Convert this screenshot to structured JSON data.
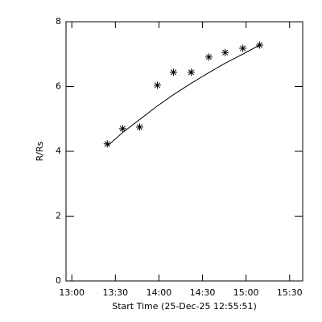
{
  "chart_data": {
    "type": "scatter",
    "xlabel": "Start Time (25-Dec-25 12:55:51)",
    "ylabel": "R/Rs",
    "x": [
      804.4,
      815.0,
      826.7,
      838.9,
      850.0,
      862.2,
      874.4,
      885.6,
      897.8,
      909.4
    ],
    "values": [
      4.23,
      4.7,
      4.75,
      6.04,
      6.44,
      6.44,
      6.91,
      7.05,
      7.18,
      7.28
    ],
    "fit": [
      4.16,
      4.58,
      4.98,
      5.4,
      5.75,
      6.1,
      6.43,
      6.72,
      7.0,
      7.28
    ],
    "color": "#000000",
    "xlim": [
      776,
      939
    ],
    "xticks": [
      {
        "value": 780,
        "label": "13:00"
      },
      {
        "value": 810,
        "label": "13:30"
      },
      {
        "value": 840,
        "label": "14:00"
      },
      {
        "value": 870,
        "label": "14:30"
      },
      {
        "value": 900,
        "label": "15:00"
      },
      {
        "value": 930,
        "label": "15:30"
      }
    ],
    "ylim": [
      0,
      8
    ],
    "yticks": [
      0,
      2,
      4,
      6,
      8
    ]
  }
}
